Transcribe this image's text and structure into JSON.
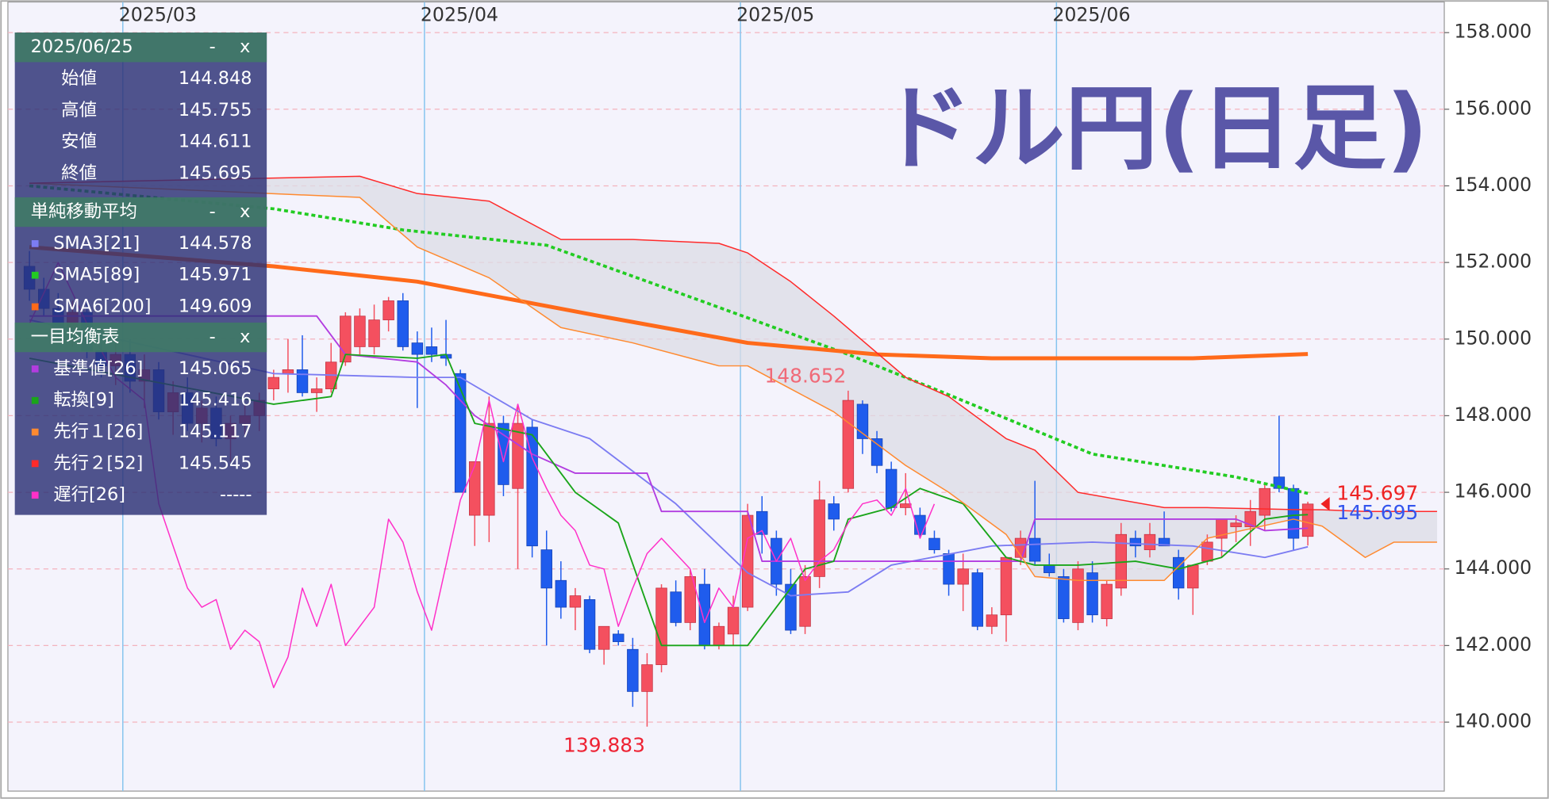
{
  "chart_data": {
    "type": "candlestick",
    "title": "ドル円(日足)",
    "xlim": [
      -1.5,
      98.5
    ],
    "xticks": [
      {
        "value": 6.5,
        "label": "2025/03"
      },
      {
        "value": 27.5,
        "label": "2025/04"
      },
      {
        "value": 49.5,
        "label": "2025/05"
      },
      {
        "value": 71.5,
        "label": "2025/06"
      }
    ],
    "ylim": [
      138.2,
      158.8
    ],
    "yticks": [
      {
        "value": 140,
        "label": "140.000"
      },
      {
        "value": 142,
        "label": "142.000"
      },
      {
        "value": 144,
        "label": "144.000"
      },
      {
        "value": 146,
        "label": "146.000"
      },
      {
        "value": 148,
        "label": "148.000"
      },
      {
        "value": 150,
        "label": "150.000"
      },
      {
        "value": 152,
        "label": "152.000"
      },
      {
        "value": 154,
        "label": "154.000"
      },
      {
        "value": 156,
        "label": "156.000"
      },
      {
        "value": 158,
        "label": "158.000"
      }
    ],
    "grid": true,
    "up_color": "#f4505f",
    "down_color": "#1f5ced",
    "candles": {
      "x": [
        0,
        1,
        2,
        3,
        4,
        5,
        6,
        7,
        8,
        9,
        10,
        11,
        12,
        13,
        14,
        15,
        16,
        17,
        18,
        19,
        20,
        21,
        22,
        23,
        24,
        25,
        26,
        27,
        28,
        29,
        30,
        31,
        32,
        33,
        34,
        35,
        36,
        37,
        38,
        39,
        40,
        41,
        42,
        43,
        44,
        45,
        46,
        47,
        48,
        49,
        50,
        51,
        52,
        53,
        54,
        55,
        56,
        57,
        58,
        59,
        60,
        61,
        62,
        63,
        64,
        65,
        66,
        67,
        68,
        69,
        70,
        71,
        72,
        73,
        74,
        75,
        76,
        77,
        78,
        79,
        80,
        81,
        82,
        83,
        84,
        85,
        86,
        87,
        88,
        89
      ],
      "open": [
        151.9,
        151.3,
        150.8,
        150.2,
        150.7,
        149.7,
        149.3,
        149.6,
        148.9,
        149.2,
        148.1,
        148.6,
        147.8,
        148.2,
        147.4,
        147.8,
        148.0,
        148.7,
        149.1,
        149.2,
        148.6,
        148.7,
        149.4,
        149.8,
        149.8,
        150.5,
        151.0,
        149.9,
        149.8,
        149.6,
        149.1,
        145.4,
        145.4,
        147.8,
        146.1,
        147.7,
        144.5,
        143.7,
        143.0,
        143.2,
        141.9,
        142.3,
        141.9,
        140.8,
        141.5,
        143.4,
        142.6,
        143.6,
        142.0,
        142.3,
        143.0,
        145.5,
        144.8,
        143.6,
        142.5,
        143.8,
        145.7,
        146.1,
        148.3,
        147.4,
        146.6,
        145.6,
        145.4,
        144.8,
        144.4,
        143.6,
        143.9,
        142.5,
        142.8,
        144.3,
        144.8,
        144.1,
        143.8,
        142.6,
        143.9,
        142.7,
        143.5,
        144.8,
        144.5,
        144.8,
        144.3,
        143.5,
        144.2,
        144.8,
        145.1,
        145.1,
        145.4,
        146.4,
        146.1,
        144.848
      ],
      "high": [
        152.3,
        151.6,
        151.2,
        151.0,
        151.0,
        150.2,
        149.9,
        150.0,
        149.6,
        149.4,
        148.9,
        149.0,
        148.4,
        148.5,
        148.0,
        148.3,
        148.6,
        149.2,
        150.0,
        150.1,
        149.0,
        149.9,
        150.7,
        150.8,
        150.9,
        151.1,
        151.2,
        150.2,
        150.3,
        150.5,
        149.2,
        146.8,
        148.5,
        148.0,
        148.3,
        147.9,
        145.0,
        144.2,
        143.5,
        143.3,
        142.5,
        142.4,
        142.2,
        141.8,
        143.6,
        143.7,
        144.0,
        144.0,
        142.6,
        143.3,
        145.7,
        145.9,
        145.0,
        144.0,
        144.1,
        146.3,
        145.9,
        148.652,
        148.4,
        147.6,
        146.8,
        146.5,
        145.6,
        145.0,
        144.5,
        144.4,
        144.0,
        143.0,
        144.3,
        145.0,
        146.3,
        144.4,
        144.0,
        144.2,
        144.2,
        143.7,
        145.2,
        145.0,
        145.2,
        145.5,
        144.5,
        144.1,
        144.9,
        145.3,
        145.4,
        145.8,
        146.2,
        148.0,
        146.2,
        145.755
      ],
      "low": [
        151.0,
        150.6,
        150.0,
        149.8,
        149.5,
        149.0,
        148.8,
        148.6,
        148.2,
        147.9,
        147.5,
        147.6,
        147.3,
        147.2,
        146.8,
        147.5,
        147.6,
        148.4,
        148.6,
        148.5,
        148.1,
        148.6,
        149.3,
        149.6,
        149.6,
        150.2,
        149.7,
        148.2,
        149.4,
        149.3,
        146.0,
        144.6,
        144.7,
        145.9,
        144.0,
        144.3,
        142.0,
        142.7,
        142.4,
        141.8,
        141.5,
        142.0,
        140.4,
        139.883,
        141.3,
        142.5,
        142.4,
        141.9,
        141.9,
        142.0,
        142.9,
        144.4,
        143.3,
        142.3,
        142.3,
        143.5,
        145.0,
        146.0,
        147.0,
        146.5,
        145.5,
        145.4,
        144.8,
        144.4,
        143.3,
        142.9,
        142.4,
        142.3,
        142.1,
        144.1,
        144.1,
        143.8,
        142.6,
        142.4,
        142.6,
        142.5,
        143.3,
        144.3,
        144.3,
        144.6,
        143.2,
        142.8,
        144.1,
        144.3,
        144.7,
        144.6,
        145.0,
        146.0,
        144.5,
        144.611
      ],
      "close": [
        151.3,
        150.8,
        150.2,
        150.7,
        149.7,
        149.3,
        149.6,
        148.9,
        149.2,
        148.1,
        148.6,
        147.8,
        148.2,
        147.4,
        147.8,
        148.0,
        148.4,
        149.0,
        149.2,
        148.6,
        148.7,
        149.4,
        150.6,
        150.6,
        150.5,
        151.0,
        149.8,
        149.6,
        149.6,
        149.5,
        146.0,
        146.8,
        147.8,
        146.2,
        147.8,
        144.6,
        143.5,
        143.0,
        143.3,
        141.9,
        142.5,
        142.1,
        140.8,
        141.5,
        143.5,
        142.6,
        143.8,
        142.0,
        142.5,
        143.0,
        145.4,
        144.9,
        143.6,
        142.4,
        143.8,
        145.8,
        145.3,
        148.4,
        147.4,
        146.7,
        145.6,
        145.7,
        144.9,
        144.5,
        143.6,
        144.0,
        142.5,
        142.8,
        144.3,
        144.8,
        144.2,
        143.9,
        142.7,
        144.0,
        142.8,
        143.6,
        144.9,
        144.6,
        144.9,
        144.6,
        143.5,
        144.1,
        144.7,
        145.3,
        145.2,
        145.5,
        146.1,
        146.1,
        144.8,
        145.695
      ]
    },
    "groups": [
      {
        "title": "単純移動平均",
        "series": [
          {
            "name": "SMA3[21]",
            "color": "#7c7cf2",
            "line_width": 1.5,
            "current": 144.578,
            "x": [
              0,
              17,
              27,
              30,
              35,
              39,
              45,
              50,
              53,
              57,
              60,
              67,
              74,
              81,
              86,
              89
            ],
            "values": [
              150.5,
              149.1,
              149.0,
              149.0,
              147.9,
              147.4,
              145.7,
              143.9,
              143.3,
              143.4,
              144.1,
              144.6,
              144.7,
              144.6,
              144.3,
              144.578
            ]
          },
          {
            "name": "SMA5[89]",
            "color": "#22cc22",
            "line_width": 3,
            "dotted": true,
            "current": 145.971,
            "x": [
              0,
              17,
              26,
              36,
              46,
              57,
              63,
              74,
              84,
              89
            ],
            "values": [
              154.0,
              153.4,
              152.85,
              152.45,
              151.1,
              149.6,
              148.7,
              147.0,
              146.4,
              145.971
            ]
          },
          {
            "name": "SMA6[200]",
            "color": "#ff6a1a",
            "line_width": 4,
            "current": 149.609,
            "x": [
              0,
              17,
              27,
              39,
              50,
              59,
              67,
              81,
              89
            ],
            "values": [
              152.4,
              151.9,
              151.5,
              150.65,
              149.9,
              149.6,
              149.5,
              149.5,
              149.609
            ]
          }
        ]
      },
      {
        "title": "一目均衡表",
        "cloud_color": "#dcdce6",
        "series": [
          {
            "name": "基準値[26]",
            "color": "#b23ce0",
            "line_width": 1.5,
            "current": 145.065,
            "x": [
              0,
              17,
              20,
              22,
              27,
              29,
              31,
              35,
              38,
              43,
              44,
              50,
              51,
              69,
              70,
              84,
              86,
              89
            ],
            "values": [
              150.6,
              150.6,
              150.6,
              149.6,
              149.4,
              148.8,
              148.0,
              147.0,
              146.5,
              146.5,
              145.5,
              145.5,
              144.2,
              144.2,
              145.3,
              145.3,
              145.0,
              145.065
            ]
          },
          {
            "name": "転換[9]",
            "color": "#1aa51a",
            "line_width": 1.5,
            "current": 145.416,
            "x": [
              0,
              17,
              21,
              22,
              27,
              29,
              31,
              35,
              38,
              41,
              44,
              47,
              50,
              52,
              54,
              56,
              57,
              60,
              62,
              65,
              68,
              70,
              73,
              77,
              80,
              83,
              86,
              88,
              89
            ],
            "values": [
              149.5,
              148.3,
              148.5,
              149.6,
              149.5,
              149.6,
              147.8,
              147.5,
              146.0,
              145.2,
              142.0,
              142.0,
              142.0,
              143.0,
              144.0,
              144.2,
              145.3,
              145.6,
              146.1,
              145.7,
              144.3,
              144.1,
              144.1,
              144.2,
              144.0,
              144.3,
              145.3,
              145.4,
              145.416
            ]
          },
          {
            "name": "先行１[26]",
            "color": "#ff8a30",
            "line_width": 1.2,
            "current": 145.117,
            "x": [
              0,
              23,
              27,
              32,
              37,
              42,
              48,
              50,
              53,
              56,
              61,
              64,
              68,
              70,
              73,
              79,
              82,
              88,
              90,
              93,
              95,
              98
            ],
            "values": [
              154.07,
              153.7,
              152.4,
              151.6,
              150.3,
              149.9,
              149.3,
              149.3,
              148.7,
              148.1,
              146.7,
              146.0,
              144.9,
              143.8,
              143.7,
              143.7,
              144.8,
              145.3,
              145.117,
              144.3,
              144.7,
              144.7
            ]
          },
          {
            "name": "先行２[52]",
            "color": "#ff2a2a",
            "line_width": 1.2,
            "current": 145.545,
            "x": [
              0,
              23,
              27,
              32,
              37,
              42,
              48,
              50,
              53,
              56,
              61,
              64,
              68,
              70,
              73,
              79,
              82,
              88,
              90,
              93,
              95,
              98
            ],
            "values": [
              154.07,
              154.25,
              153.8,
              153.6,
              152.6,
              152.6,
              152.5,
              152.25,
              151.5,
              150.6,
              149.0,
              148.5,
              147.4,
              147.1,
              146.0,
              145.6,
              145.6,
              145.55,
              145.545,
              145.5,
              145.5,
              145.5
            ]
          },
          {
            "name": "遅行[26]",
            "color": "#ff30c8",
            "line_width": 1.2,
            "current": "-----",
            "x": [
              0,
              2,
              4,
              6,
              8,
              9,
              10,
              11,
              12,
              13,
              14,
              15,
              16,
              17,
              18,
              19,
              20,
              21,
              22,
              24,
              25,
              26,
              27,
              28,
              29,
              30,
              31,
              32,
              33,
              34,
              35,
              36,
              37,
              38,
              39,
              40,
              41,
              42,
              43,
              44,
              45,
              46,
              47,
              48,
              49,
              50,
              51,
              52,
              53,
              54,
              55,
              56,
              57,
              58,
              59,
              60,
              61,
              62,
              63
            ],
            "values": [
              150.4,
              152.0,
              150.4,
              149.0,
              148.4,
              145.7,
              144.6,
              143.5,
              143.0,
              143.2,
              141.9,
              142.4,
              142.1,
              140.9,
              141.7,
              143.5,
              142.5,
              143.6,
              142.0,
              143.0,
              145.3,
              144.7,
              143.4,
              142.4,
              144.1,
              145.8,
              146.7,
              148.4,
              146.8,
              148.3,
              146.9,
              146.1,
              145.4,
              145.0,
              144.1,
              144.0,
              142.5,
              143.5,
              144.4,
              144.8,
              144.4,
              144.0,
              142.6,
              143.5,
              143.0,
              144.8,
              145.0,
              144.2,
              144.8,
              143.7,
              144.2,
              144.5,
              145.2,
              145.7,
              145.8,
              145.4,
              146.1,
              144.8,
              145.695
            ]
          }
        ]
      }
    ],
    "annotations": [
      {
        "x": 57,
        "value": 148.652,
        "color": "#f06a78",
        "side": "above"
      },
      {
        "x": 43,
        "value": 139.883,
        "color": "#ee2233",
        "side": "below"
      }
    ],
    "price_labels": [
      {
        "value": 145.697,
        "color": "#ee2222"
      },
      {
        "value": 145.695,
        "color": "#3355ee"
      }
    ],
    "panel": {
      "date": "2025/06/25",
      "controls": [
        "-",
        "x"
      ],
      "ohlc": [
        {
          "label": "始値",
          "value": 144.848
        },
        {
          "label": "高値",
          "value": 145.755
        },
        {
          "label": "安値",
          "value": 144.611
        },
        {
          "label": "終値",
          "value": 145.695
        }
      ]
    }
  }
}
